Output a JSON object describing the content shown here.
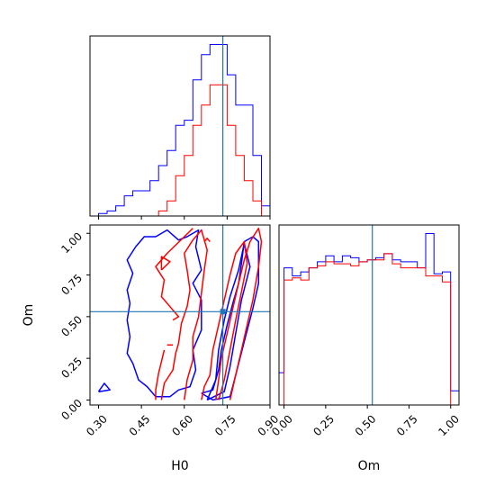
{
  "chart_data": {
    "type": "corner",
    "params": [
      "H0",
      "Om"
    ],
    "truths": {
      "H0": 0.735,
      "Om": 0.53
    },
    "colors": {
      "blue": "#0000ff",
      "red": "#ff0000",
      "truth": "#1f77b4"
    },
    "axes": {
      "H0": {
        "label": "H0",
        "lim": [
          0.27,
          0.9
        ],
        "ticks": [
          "0.30",
          "0.45",
          "0.60",
          "0.75",
          "0.90"
        ]
      },
      "Om": {
        "label": "Om",
        "lim": [
          -0.03,
          1.05
        ],
        "ticks": [
          "0.00",
          "0.25",
          "0.50",
          "0.75",
          "1.00"
        ]
      }
    },
    "hist_H0": {
      "edges": [
        0.27,
        0.3,
        0.33,
        0.36,
        0.39,
        0.42,
        0.45,
        0.48,
        0.51,
        0.54,
        0.57,
        0.6,
        0.63,
        0.66,
        0.69,
        0.72,
        0.75,
        0.78,
        0.81,
        0.84,
        0.87,
        0.9
      ],
      "series": [
        {
          "color": "blue",
          "counts": [
            0,
            0.5,
            1,
            2,
            4,
            5,
            5,
            7,
            10,
            13,
            18,
            19,
            27,
            32,
            34,
            34,
            28,
            22,
            22,
            12,
            2
          ]
        },
        {
          "color": "red",
          "counts": [
            0,
            0,
            0,
            0,
            0,
            0,
            0,
            0,
            1,
            3,
            8,
            12,
            18,
            22,
            26,
            26,
            18,
            12,
            7,
            3,
            0
          ]
        }
      ]
    },
    "hist_Om": {
      "edges": [
        -0.03,
        0.0,
        0.05,
        0.1,
        0.15,
        0.2,
        0.25,
        0.3,
        0.35,
        0.4,
        0.45,
        0.5,
        0.55,
        0.6,
        0.65,
        0.7,
        0.75,
        0.8,
        0.85,
        0.9,
        0.95,
        1.0,
        1.05
      ],
      "series": [
        {
          "color": "blue",
          "counts": [
            3.2,
            13.6,
            12.8,
            13.2,
            13.6,
            14.2,
            14.8,
            14.2,
            14.8,
            14.6,
            14.2,
            14.4,
            14.6,
            15.0,
            14.4,
            14.2,
            14.2,
            13.6,
            17.0,
            13.0,
            13.2,
            1.4
          ]
        },
        {
          "color": "red",
          "counts": [
            0,
            12.4,
            12.6,
            12.4,
            13.6,
            13.8,
            14.2,
            14.0,
            14.0,
            13.8,
            14.2,
            14.4,
            14.4,
            15.0,
            14.0,
            13.6,
            13.6,
            13.6,
            12.8,
            12.8,
            12.2,
            0
          ]
        }
      ]
    },
    "contours": [
      {
        "color": "blue",
        "points": [
          [
            0.66,
            0.04
          ],
          [
            0.7,
            0.06
          ],
          [
            0.72,
            0.18
          ],
          [
            0.73,
            0.3
          ],
          [
            0.75,
            0.45
          ],
          [
            0.77,
            0.58
          ],
          [
            0.79,
            0.7
          ],
          [
            0.8,
            0.82
          ],
          [
            0.81,
            0.95
          ],
          [
            0.84,
            0.98
          ],
          [
            0.86,
            0.95
          ],
          [
            0.86,
            0.7
          ],
          [
            0.84,
            0.55
          ],
          [
            0.81,
            0.35
          ],
          [
            0.78,
            0.15
          ],
          [
            0.76,
            0.02
          ],
          [
            0.7,
            0.0
          ],
          [
            0.66,
            0.04
          ]
        ]
      },
      {
        "color": "blue",
        "points": [
          [
            0.68,
            0.0
          ],
          [
            0.71,
            0.12
          ],
          [
            0.72,
            0.3
          ],
          [
            0.74,
            0.48
          ],
          [
            0.76,
            0.62
          ],
          [
            0.79,
            0.78
          ],
          [
            0.81,
            0.94
          ],
          [
            0.83,
            0.8
          ],
          [
            0.8,
            0.6
          ],
          [
            0.78,
            0.4
          ],
          [
            0.76,
            0.2
          ],
          [
            0.74,
            0.05
          ],
          [
            0.68,
            0.0
          ]
        ]
      },
      {
        "color": "blue",
        "points": [
          [
            0.5,
            0.02
          ],
          [
            0.47,
            0.08
          ],
          [
            0.44,
            0.12
          ],
          [
            0.42,
            0.22
          ],
          [
            0.4,
            0.28
          ],
          [
            0.41,
            0.38
          ],
          [
            0.4,
            0.48
          ],
          [
            0.41,
            0.58
          ],
          [
            0.4,
            0.66
          ],
          [
            0.42,
            0.76
          ],
          [
            0.4,
            0.84
          ],
          [
            0.43,
            0.92
          ],
          [
            0.46,
            0.98
          ],
          [
            0.5,
            0.98
          ],
          [
            0.54,
            1.02
          ],
          [
            0.58,
            0.96
          ],
          [
            0.61,
            0.98
          ],
          [
            0.65,
            1.02
          ],
          [
            0.64,
            0.92
          ],
          [
            0.66,
            0.78
          ],
          [
            0.63,
            0.7
          ],
          [
            0.66,
            0.6
          ],
          [
            0.66,
            0.42
          ],
          [
            0.63,
            0.3
          ],
          [
            0.64,
            0.18
          ],
          [
            0.62,
            0.08
          ],
          [
            0.58,
            0.06
          ],
          [
            0.55,
            0.02
          ],
          [
            0.5,
            0.02
          ]
        ]
      },
      {
        "color": "blue",
        "points": [
          [
            0.3,
            0.05
          ],
          [
            0.32,
            0.1
          ],
          [
            0.34,
            0.06
          ],
          [
            0.3,
            0.05
          ]
        ]
      },
      {
        "color": "red",
        "points": [
          [
            0.66,
            0.0
          ],
          [
            0.67,
            0.08
          ],
          [
            0.69,
            0.15
          ],
          [
            0.7,
            0.3
          ],
          [
            0.72,
            0.45
          ],
          [
            0.74,
            0.6
          ],
          [
            0.76,
            0.75
          ],
          [
            0.78,
            0.88
          ],
          [
            0.81,
            0.95
          ],
          [
            0.82,
            0.82
          ],
          [
            0.8,
            0.65
          ],
          [
            0.78,
            0.48
          ],
          [
            0.76,
            0.3
          ],
          [
            0.74,
            0.12
          ],
          [
            0.72,
            0.0
          ]
        ]
      },
      {
        "color": "red",
        "points": [
          [
            0.71,
            0.0
          ],
          [
            0.72,
            0.12
          ],
          [
            0.73,
            0.25
          ],
          [
            0.75,
            0.4
          ],
          [
            0.77,
            0.55
          ],
          [
            0.79,
            0.7
          ],
          [
            0.81,
            0.84
          ],
          [
            0.83,
            0.95
          ],
          [
            0.86,
            1.03
          ],
          [
            0.87,
            0.95
          ],
          [
            0.86,
            0.8
          ],
          [
            0.84,
            0.6
          ],
          [
            0.82,
            0.45
          ],
          [
            0.8,
            0.3
          ],
          [
            0.78,
            0.15
          ],
          [
            0.76,
            0.0
          ]
        ]
      },
      {
        "color": "red",
        "points": [
          [
            0.52,
            0.0
          ],
          [
            0.53,
            0.1
          ],
          [
            0.56,
            0.18
          ],
          [
            0.57,
            0.28
          ],
          [
            0.58,
            0.34
          ],
          [
            0.59,
            0.46
          ],
          [
            0.61,
            0.56
          ],
          [
            0.62,
            0.66
          ],
          [
            0.61,
            0.78
          ],
          [
            0.6,
            0.88
          ],
          [
            0.63,
            0.96
          ],
          [
            0.66,
            1.02
          ],
          [
            0.68,
            0.9
          ],
          [
            0.67,
            0.78
          ],
          [
            0.66,
            0.64
          ],
          [
            0.65,
            0.5
          ],
          [
            0.63,
            0.38
          ],
          [
            0.63,
            0.24
          ],
          [
            0.61,
            0.12
          ],
          [
            0.6,
            0.0
          ]
        ]
      },
      {
        "color": "red",
        "points": [
          [
            0.5,
            0.0
          ],
          [
            0.5,
            0.06
          ],
          [
            0.51,
            0.16
          ],
          [
            0.53,
            0.3
          ]
        ]
      },
      {
        "color": "red",
        "points": [
          [
            0.56,
            0.48
          ],
          [
            0.58,
            0.5
          ],
          [
            0.55,
            0.56
          ],
          [
            0.52,
            0.62
          ],
          [
            0.53,
            0.72
          ],
          [
            0.5,
            0.8
          ],
          [
            0.54,
            0.88
          ],
          [
            0.6,
            0.98
          ],
          [
            0.63,
            1.03
          ]
        ]
      },
      {
        "color": "red",
        "points": [
          [
            0.52,
            0.78
          ],
          [
            0.55,
            0.83
          ],
          [
            0.52,
            0.86
          ],
          [
            0.52,
            0.78
          ]
        ]
      },
      {
        "color": "red",
        "points": [
          [
            0.54,
            0.33
          ],
          [
            0.56,
            0.33
          ]
        ]
      },
      {
        "color": "red",
        "points": [
          [
            0.67,
            0.95
          ],
          [
            0.68,
            0.97
          ],
          [
            0.69,
            0.95
          ]
        ]
      }
    ],
    "marker": {
      "H0": 0.735,
      "Om": 0.53,
      "color": "truth"
    }
  }
}
